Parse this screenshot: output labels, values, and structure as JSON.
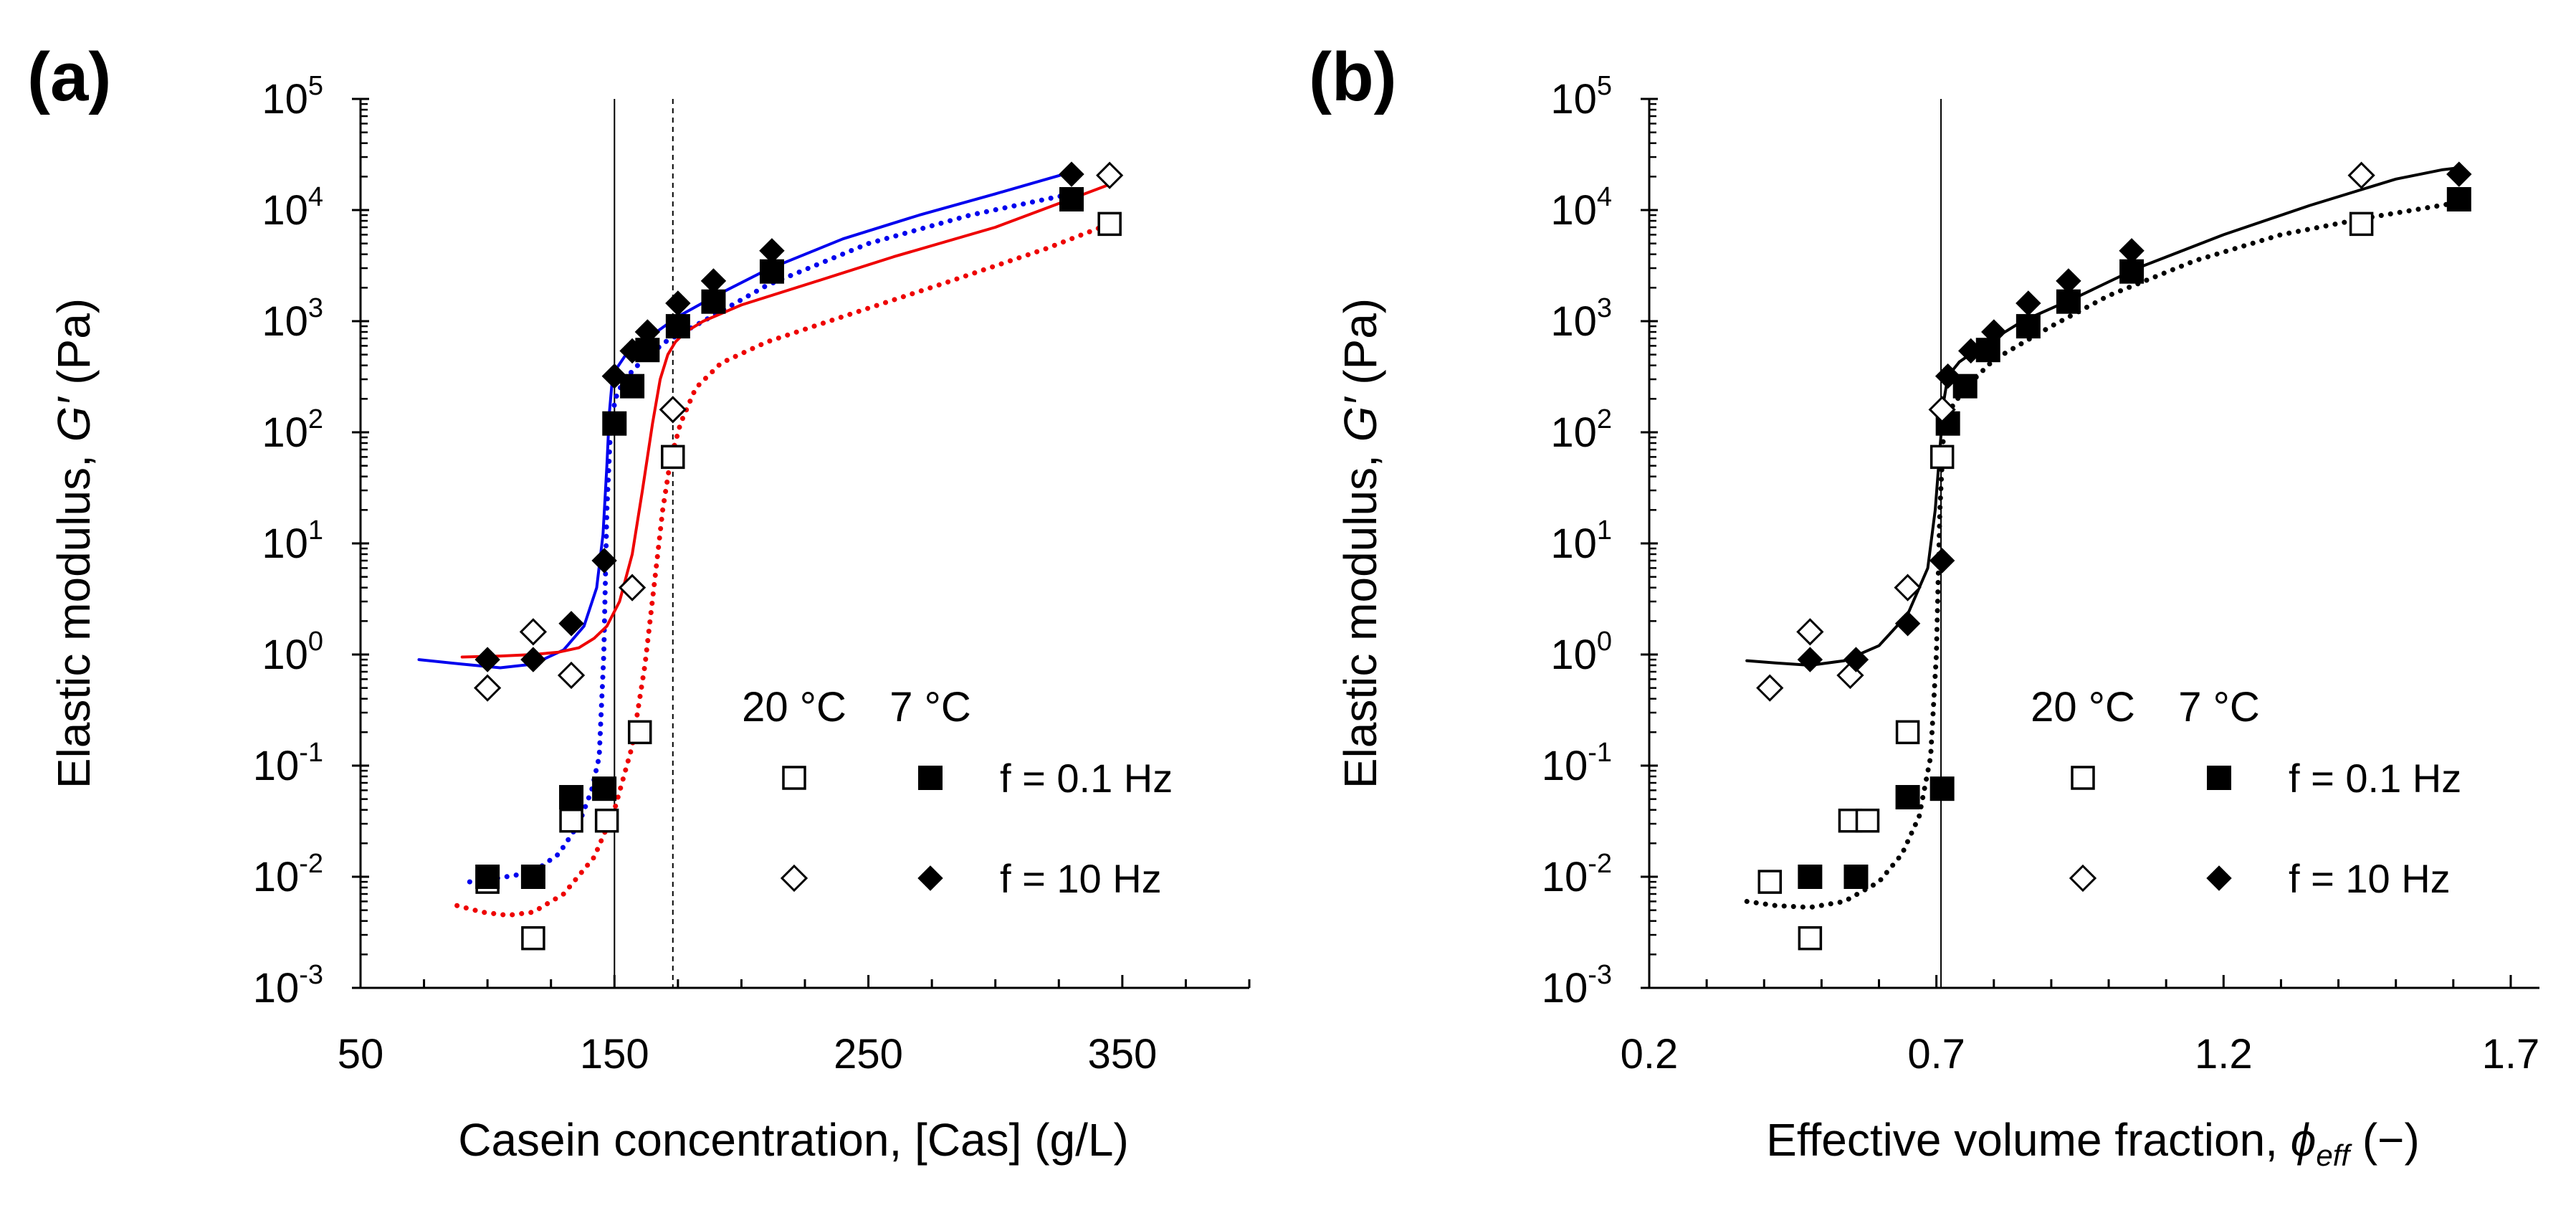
{
  "chart_data": [
    {
      "type": "scatter",
      "panel_label": "(a)",
      "xlabel": "Casein concentration, [Cas] (g/L)",
      "ylabel_prefix": "Elastic modulus, ",
      "ylabel_var": "G′",
      "ylabel_suffix": " (Pa)",
      "xlim": [
        50,
        400
      ],
      "ylim_log10": [
        -3,
        5
      ],
      "x_ticks": [
        50,
        150,
        250,
        350
      ],
      "y_ticks_exp": [
        -3,
        -2,
        -1,
        0,
        1,
        2,
        3,
        4,
        5
      ],
      "y_tick_base": "10",
      "vlines": [
        {
          "x": 150,
          "style": "solid"
        },
        {
          "x": 173,
          "style": "dashed"
        }
      ],
      "series": [
        {
          "name": "20 °C, f = 0.1 Hz",
          "marker": "open-square",
          "x": [
            100,
            118,
            133,
            147,
            160,
            173,
            345
          ],
          "y": [
            0.009,
            0.0028,
            0.032,
            0.032,
            0.2,
            60,
            7500
          ]
        },
        {
          "name": "7 °C, f = 0.1 Hz",
          "marker": "filled-square",
          "x": [
            100,
            118,
            133,
            146,
            150,
            157,
            163,
            175,
            189,
            212,
            330
          ],
          "y": [
            0.01,
            0.01,
            0.052,
            0.062,
            120,
            260,
            550,
            900,
            1500,
            2800,
            12500
          ]
        },
        {
          "name": "20 °C, f = 10 Hz",
          "marker": "open-diamond",
          "x": [
            100,
            118,
            133,
            157,
            173,
            345
          ],
          "y": [
            0.5,
            1.6,
            0.65,
            4,
            160,
            20500
          ]
        },
        {
          "name": "7 °C, f = 10 Hz",
          "marker": "filled-diamond",
          "x": [
            100,
            118,
            133,
            146,
            150,
            157,
            163,
            175,
            189,
            212,
            330
          ],
          "y": [
            0.9,
            0.9,
            1.9,
            7,
            320,
            540,
            800,
            1450,
            2300,
            4300,
            21000
          ]
        }
      ],
      "fits": [
        {
          "color": "#0000ee",
          "style": "solid",
          "x": [
            73,
            90,
            105,
            118,
            130,
            138,
            143,
            145.5,
            147,
            148,
            149,
            151,
            155,
            163,
            175,
            190,
            210,
            240,
            270,
            300,
            330
          ],
          "y": [
            0.9,
            0.82,
            0.76,
            0.82,
            1.1,
            1.8,
            4,
            12,
            50,
            150,
            270,
            380,
            520,
            700,
            1100,
            1700,
            2900,
            5500,
            9000,
            14000,
            22000
          ]
        },
        {
          "color": "#0000ee",
          "style": "dotted",
          "x": [
            93,
            105,
            118,
            128,
            136,
            141,
            144,
            145.8,
            147,
            148.2,
            149.5,
            151,
            154,
            160,
            170,
            185,
            210,
            250,
            290,
            330
          ],
          "y": [
            0.009,
            0.0098,
            0.011,
            0.016,
            0.03,
            0.06,
            0.12,
            1,
            20,
            80,
            160,
            220,
            300,
            420,
            650,
            1000,
            2100,
            5000,
            9000,
            14000
          ]
        },
        {
          "color": "#ee0000",
          "style": "solid",
          "x": [
            90,
            105,
            118,
            128,
            136,
            142,
            147,
            152,
            157,
            161,
            165,
            168,
            171,
            174,
            178,
            185,
            200,
            230,
            260,
            300,
            345
          ],
          "y": [
            0.95,
            0.97,
            1,
            1.05,
            1.15,
            1.4,
            1.8,
            3,
            8,
            30,
            120,
            300,
            500,
            650,
            800,
            1000,
            1400,
            2300,
            3800,
            7000,
            17000
          ]
        },
        {
          "color": "#ee0000",
          "style": "dotted",
          "x": [
            88,
            98,
            108,
            118,
            130,
            142,
            150,
            157,
            162,
            166,
            169,
            172,
            176,
            182,
            192,
            210,
            240,
            280,
            320,
            345
          ],
          "y": [
            0.0055,
            0.0048,
            0.0045,
            0.0048,
            0.007,
            0.015,
            0.04,
            0.15,
            0.8,
            5,
            20,
            55,
            120,
            250,
            420,
            650,
            1100,
            2200,
            4500,
            7500
          ]
        }
      ],
      "legend": {
        "col_headers": [
          "20 °C",
          "7 °C"
        ],
        "row_labels": [
          "f = 0.1 Hz",
          "f = 10 Hz"
        ]
      }
    },
    {
      "type": "scatter",
      "panel_label": "(b)",
      "xlabel_prefix": "Effective volume fraction, ",
      "xlabel_var": "ϕ",
      "xlabel_sub": "eff",
      "xlabel_suffix": " (−)",
      "ylabel_prefix": "Elastic modulus, ",
      "ylabel_var": "G′",
      "ylabel_suffix": " (Pa)",
      "xlim": [
        0.2,
        1.75
      ],
      "ylim_log10": [
        -3,
        5
      ],
      "x_ticks": [
        0.2,
        0.7,
        1.2,
        1.7
      ],
      "y_ticks_exp": [
        -3,
        -2,
        -1,
        0,
        1,
        2,
        3,
        4,
        5
      ],
      "y_tick_base": "10",
      "vlines": [
        {
          "x": 0.708,
          "style": "solid"
        }
      ],
      "series": [
        {
          "name": "20 °C, f = 0.1 Hz",
          "marker": "open-square",
          "x": [
            0.41,
            0.48,
            0.55,
            0.58,
            0.65,
            0.71,
            1.44
          ],
          "y": [
            0.009,
            0.0028,
            0.032,
            0.032,
            0.2,
            60,
            7500
          ]
        },
        {
          "name": "7 °C, f = 0.1 Hz",
          "marker": "filled-square",
          "x": [
            0.48,
            0.56,
            0.65,
            0.71,
            0.72,
            0.75,
            0.79,
            0.86,
            0.93,
            1.04,
            1.61
          ],
          "y": [
            0.01,
            0.01,
            0.052,
            0.062,
            120,
            260,
            550,
            900,
            1500,
            2800,
            12500
          ]
        },
        {
          "name": "20 °C, f = 10 Hz",
          "marker": "open-diamond",
          "x": [
            0.41,
            0.48,
            0.55,
            0.65,
            0.71,
            1.44
          ],
          "y": [
            0.5,
            1.6,
            0.65,
            4,
            160,
            20500
          ]
        },
        {
          "name": "7 °C, f = 10 Hz",
          "marker": "filled-diamond",
          "x": [
            0.48,
            0.56,
            0.65,
            0.71,
            0.72,
            0.76,
            0.8,
            0.86,
            0.93,
            1.04,
            1.61
          ],
          "y": [
            0.9,
            0.9,
            1.9,
            7,
            320,
            540,
            800,
            1450,
            2300,
            4300,
            21000
          ]
        }
      ],
      "fits": [
        {
          "color": "#000000",
          "style": "solid",
          "x": [
            0.37,
            0.42,
            0.48,
            0.54,
            0.6,
            0.65,
            0.685,
            0.698,
            0.706,
            0.712,
            0.72,
            0.74,
            0.78,
            0.85,
            0.95,
            1.05,
            1.2,
            1.35,
            1.5,
            1.58,
            1.61
          ],
          "y": [
            0.88,
            0.84,
            0.8,
            0.88,
            1.2,
            2.3,
            6,
            20,
            70,
            180,
            320,
            430,
            600,
            1000,
            1700,
            3000,
            6000,
            11000,
            19000,
            23000,
            24000
          ]
        },
        {
          "color": "#000000",
          "style": "dotted",
          "x": [
            0.37,
            0.42,
            0.48,
            0.54,
            0.6,
            0.64,
            0.67,
            0.69,
            0.7,
            0.706,
            0.712,
            0.72,
            0.75,
            0.8,
            0.9,
            1.0,
            1.15,
            1.3,
            1.45,
            1.6
          ],
          "y": [
            0.006,
            0.0055,
            0.0053,
            0.006,
            0.009,
            0.016,
            0.035,
            0.12,
            1,
            20,
            90,
            150,
            250,
            450,
            900,
            1700,
            3500,
            6000,
            8500,
            11500
          ]
        }
      ],
      "legend": {
        "col_headers": [
          "20 °C",
          "7 °C"
        ],
        "row_labels": [
          "f = 0.1 Hz",
          "f = 10 Hz"
        ]
      }
    }
  ]
}
